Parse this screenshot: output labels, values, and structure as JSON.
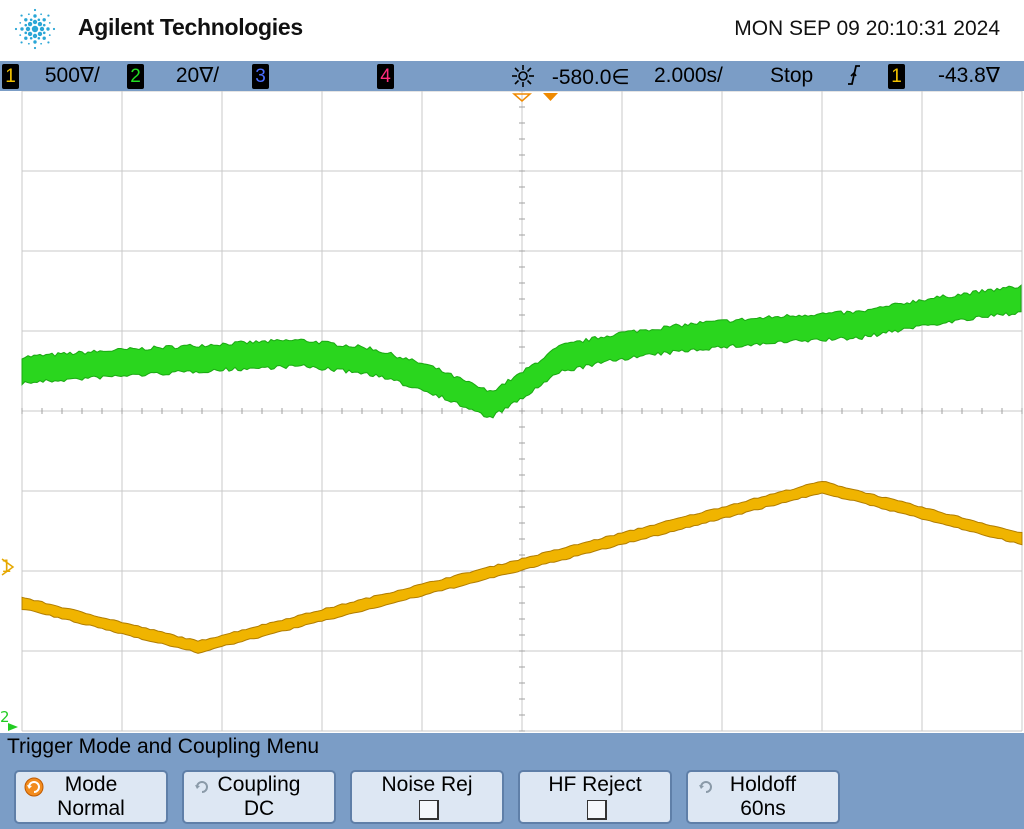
{
  "header": {
    "brand": "Agilent Technologies",
    "datetime": "MON SEP 09 20:10:31 2024",
    "logo_icon": "agilent-spark-icon"
  },
  "status": {
    "ch1": {
      "num": "1",
      "scale": "500",
      "unit": "∇/"
    },
    "ch2": {
      "num": "2",
      "scale": "20",
      "unit": "∇/"
    },
    "ch3": {
      "num": "3"
    },
    "ch4": {
      "num": "4"
    },
    "delay_icon": "delay-icon",
    "delay": "-580.0",
    "delay_unit": "∈",
    "timebase": "2.000s/",
    "run_state": "Stop",
    "trigger_slope_icon": "rising-edge-icon",
    "trigger_source": "1",
    "trigger_level": "-43.8",
    "trigger_level_unit": "∇"
  },
  "markers": {
    "ch1_ground": "1",
    "ch2_ground": "2"
  },
  "colors": {
    "ch1": "#f0b400",
    "ch2": "#22dd22",
    "ch3": "#4a6dff",
    "ch4": "#ff2d7c",
    "bar": "#7b9dc6",
    "grid": "#c8c8c8"
  },
  "menu": {
    "title": "Trigger Mode and Coupling Menu",
    "softkeys": [
      {
        "line1": "Mode",
        "line2": "Normal",
        "has_knob": true
      },
      {
        "line1": "Coupling",
        "line2": "DC",
        "has_knob": true
      },
      {
        "line1": "Noise Rej",
        "checked": false
      },
      {
        "line1": "HF Reject",
        "checked": false
      },
      {
        "line1": "Holdoff",
        "line2": "60ns",
        "has_knob": true
      }
    ]
  }
}
